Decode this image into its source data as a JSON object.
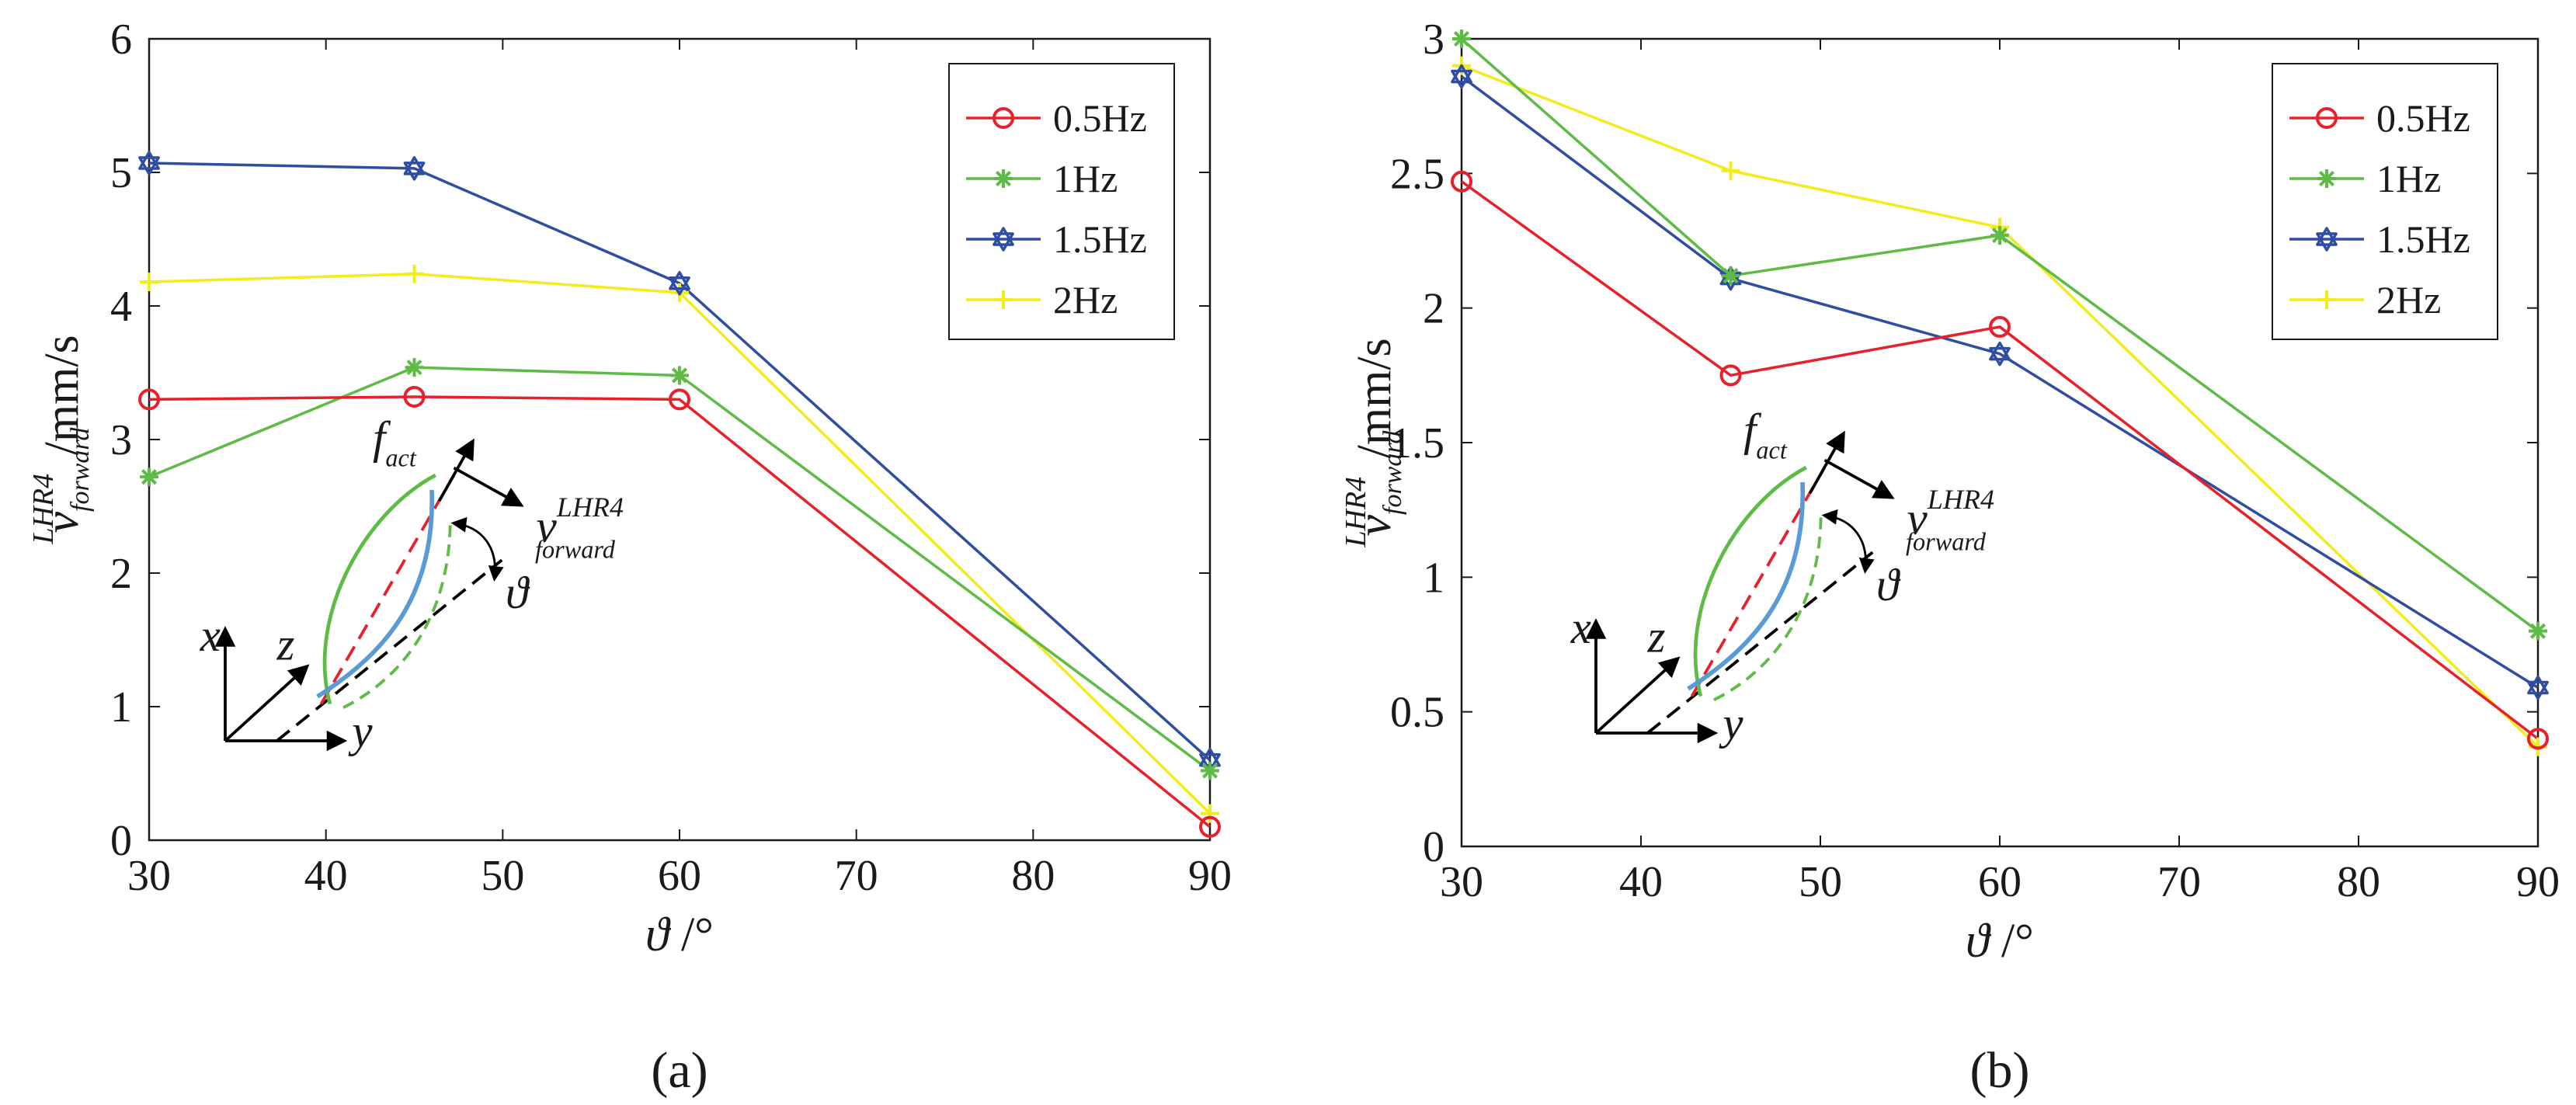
{
  "chart_data": [
    {
      "type": "line",
      "panel_label": "(a)",
      "x": [
        30,
        45,
        60,
        90
      ],
      "xlim": [
        30,
        90
      ],
      "ylim": [
        0,
        6
      ],
      "x_ticks": [
        "30",
        "40",
        "50",
        "60",
        "70",
        "80",
        "90"
      ],
      "y_ticks": [
        "0",
        "1",
        "2",
        "3",
        "4",
        "5",
        "6"
      ],
      "xlabel_symbol": "ϑ",
      "xlabel_unit": "/°",
      "ylabel_main": "v",
      "ylabel_sub": "forward",
      "ylabel_sup": "LHR4",
      "ylabel_unit": "/mm/s",
      "legend_position": "top-right",
      "series": [
        {
          "name": "0.5Hz",
          "color": "#e8202a",
          "marker": "circle",
          "values": [
            3.3,
            3.32,
            3.3,
            0.1
          ]
        },
        {
          "name": "1Hz",
          "color": "#5dbb46",
          "marker": "asterisk",
          "values": [
            2.72,
            3.54,
            3.48,
            0.52
          ]
        },
        {
          "name": "1.5Hz",
          "color": "#2f4ea2",
          "marker": "hexagram",
          "values": [
            5.07,
            5.03,
            4.17,
            0.6
          ]
        },
        {
          "name": "2Hz",
          "color": "#f2ec1c",
          "marker": "plus",
          "values": [
            4.18,
            4.24,
            4.1,
            0.2
          ]
        }
      ],
      "inset": {
        "force_label": "f",
        "force_sub": "act",
        "velocity_label": "v",
        "velocity_sub": "forward",
        "velocity_sup": "LHR4",
        "angle_label": "ϑ",
        "axis_x": "x",
        "axis_y": "y",
        "axis_z": "z"
      }
    },
    {
      "type": "line",
      "panel_label": "(b)",
      "x": [
        30,
        45,
        60,
        90
      ],
      "xlim": [
        30,
        90
      ],
      "ylim": [
        0,
        3
      ],
      "x_ticks": [
        "30",
        "40",
        "50",
        "60",
        "70",
        "80",
        "90"
      ],
      "y_ticks": [
        "0",
        "0.5",
        "1",
        "1.5",
        "2",
        "2.5",
        "3"
      ],
      "xlabel_symbol": "ϑ",
      "xlabel_unit": "/°",
      "ylabel_main": "v",
      "ylabel_sub": "forward",
      "ylabel_sup": "LHR4",
      "ylabel_unit": "/mm/s",
      "legend_position": "top-right",
      "series": [
        {
          "name": "0.5Hz",
          "color": "#e8202a",
          "marker": "circle",
          "values": [
            2.47,
            1.75,
            1.93,
            0.4
          ]
        },
        {
          "name": "1Hz",
          "color": "#5dbb46",
          "marker": "asterisk",
          "values": [
            3.0,
            2.12,
            2.27,
            0.8
          ]
        },
        {
          "name": "1.5Hz",
          "color": "#2f4ea2",
          "marker": "hexagram",
          "values": [
            2.86,
            2.11,
            1.83,
            0.59
          ]
        },
        {
          "name": "2Hz",
          "color": "#f2ec1c",
          "marker": "plus",
          "values": [
            2.9,
            2.51,
            2.3,
            0.37
          ]
        }
      ],
      "inset": {
        "force_label": "f",
        "force_sub": "act",
        "velocity_label": "v",
        "velocity_sub": "forward",
        "velocity_sup": "LHR4",
        "angle_label": "ϑ",
        "axis_x": "x",
        "axis_y": "y",
        "axis_z": "z"
      }
    }
  ]
}
